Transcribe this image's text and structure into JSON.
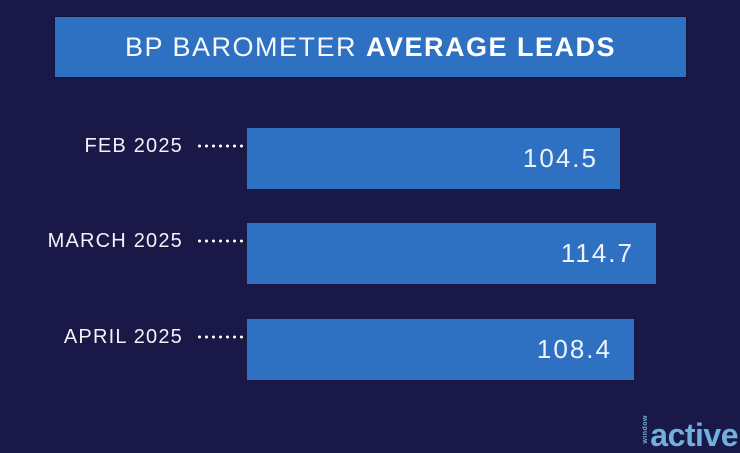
{
  "header": {
    "title_regular": "BP BAROMETER",
    "title_bold": "AVERAGE LEADS"
  },
  "chart_data": {
    "type": "bar",
    "orientation": "horizontal",
    "title": "BP BAROMETER AVERAGE LEADS",
    "categories": [
      "FEB 2025",
      "MARCH 2025",
      "APRIL 2025"
    ],
    "values": [
      104.5,
      114.7,
      108.4
    ],
    "value_labels": [
      "104.5",
      "114.7",
      "108.4"
    ],
    "xlim": [
      0,
      125
    ],
    "grid": false,
    "legend": "none",
    "bar_color": "#2e70c2",
    "background_color": "#1a1847",
    "label_color": "#f2f3f8",
    "value_label_position": "inside-end",
    "connector_style": "dotted-line-with-ring"
  },
  "logo": {
    "text": "active",
    "vertical_text": "window",
    "color": "#6fb0dd"
  },
  "colors": {
    "background": "#1a1847",
    "bar_blue": "#2e70c2",
    "text_white": "#f7f8fc",
    "logo_blue": "#6fb0dd"
  }
}
